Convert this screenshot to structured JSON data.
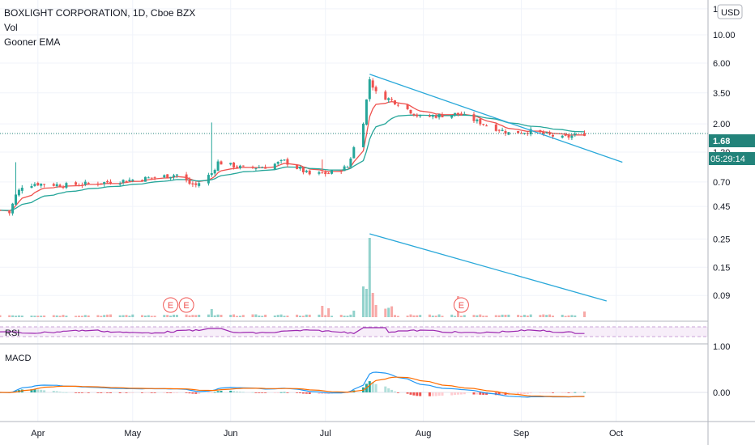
{
  "header": {
    "title": "BOXLIGHT CORPORATION, 1D, Cboe BZX",
    "indicator_vol": "Vol",
    "indicator_ema": "Gooner EMA",
    "currency": "USD"
  },
  "panes": {
    "rsi_label": "RSI",
    "macd_label": "MACD"
  },
  "price_tag": {
    "last": "1.68",
    "countdown": "05:29:14"
  },
  "colors": {
    "up": "#26a69a",
    "down": "#ef5350",
    "ema_fast": "#ef5350",
    "ema_slow": "#26a69a",
    "trendline": "#29a8d9",
    "last_price": "#22837a",
    "rsi": "#9c27b0",
    "macd_line": "#2196f3",
    "signal_line": "#ff6d00"
  },
  "chart_data": {
    "type": "candlestick",
    "title": "BOXLIGHT CORPORATION, 1D, Cboe BZX",
    "xlabel": "",
    "ylabel": "",
    "scale": "log",
    "x_ticks": [
      "Apr",
      "May",
      "Jun",
      "Jul",
      "Aug",
      "Sep",
      "Oct"
    ],
    "y_ticks": [
      "16.00",
      "10.00",
      "6.00",
      "3.50",
      "2.00",
      "1.20",
      "0.70",
      "0.45",
      "0.25",
      "0.15",
      "0.09"
    ],
    "y_tick_values": [
      16,
      10,
      6,
      3.5,
      2,
      1.2,
      0.7,
      0.45,
      0.25,
      0.15,
      0.09
    ],
    "ylim": [
      0.09,
      16
    ],
    "last_price": 1.68,
    "start_date": "2020-03-20",
    "date_range": [
      "2020-03-20",
      "2020-09-21"
    ],
    "price_path": [
      {
        "date": "2020-03-20",
        "close": 0.42
      },
      {
        "date": "2020-03-23",
        "close": 0.4
      },
      {
        "date": "2020-03-25",
        "close": 0.55
      },
      {
        "date": "2020-03-27",
        "close": 0.65
      },
      {
        "date": "2020-03-31",
        "close": 0.68
      },
      {
        "date": "2020-04-10",
        "close": 0.66
      },
      {
        "date": "2020-04-24",
        "close": 0.7
      },
      {
        "date": "2020-05-08",
        "close": 0.76
      },
      {
        "date": "2020-05-15",
        "close": 0.8
      },
      {
        "date": "2020-05-19",
        "close": 0.68
      },
      {
        "date": "2020-05-21",
        "close": 0.66
      },
      {
        "date": "2020-05-26",
        "close": 0.82
      },
      {
        "date": "2020-05-28",
        "close": 1.0
      },
      {
        "date": "2020-06-05",
        "close": 0.9
      },
      {
        "date": "2020-06-12",
        "close": 0.92
      },
      {
        "date": "2020-06-18",
        "close": 1.02
      },
      {
        "date": "2020-06-26",
        "close": 0.8
      },
      {
        "date": "2020-07-02",
        "close": 0.82
      },
      {
        "date": "2020-07-08",
        "close": 0.92
      },
      {
        "date": "2020-07-10",
        "close": 1.3
      },
      {
        "date": "2020-07-13",
        "close": 2.1
      },
      {
        "date": "2020-07-15",
        "close": 4.5
      },
      {
        "date": "2020-07-17",
        "close": 3.5
      },
      {
        "date": "2020-07-24",
        "close": 2.9
      },
      {
        "date": "2020-07-31",
        "close": 2.25
      },
      {
        "date": "2020-08-12",
        "close": 2.4
      },
      {
        "date": "2020-08-20",
        "close": 2.0
      },
      {
        "date": "2020-08-28",
        "close": 1.7
      },
      {
        "date": "2020-09-04",
        "close": 1.75
      },
      {
        "date": "2020-09-14",
        "close": 1.55
      },
      {
        "date": "2020-09-21",
        "close": 1.68
      }
    ],
    "trendlines": [
      {
        "pane": "price",
        "from": {
          "date": "2020-07-15",
          "value": 4.9
        },
        "to": {
          "date": "2020-10-03",
          "value": 1.0
        }
      },
      {
        "pane": "volume",
        "from": {
          "date": "2020-07-15"
        },
        "to": {
          "date": "2020-09-28"
        }
      }
    ],
    "earnings_markers": [
      {
        "date": "2020-05-13",
        "label": "E"
      },
      {
        "date": "2020-05-18",
        "label": "E"
      },
      {
        "date": "2020-08-13",
        "label": "E"
      }
    ],
    "rsi": {
      "y_ticks": [],
      "ylim": [
        0,
        100
      ]
    },
    "macd": {
      "y_ticks": [
        "1.00",
        "0.00"
      ],
      "y_tick_values": [
        1,
        0
      ]
    }
  }
}
